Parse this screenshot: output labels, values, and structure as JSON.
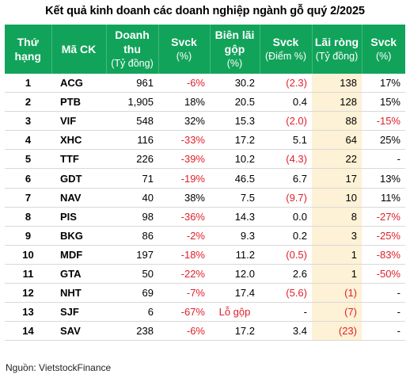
{
  "title": "Kết quả kinh doanh các doanh nghiệp ngành gỗ quý 2/2025",
  "headers": [
    {
      "main": "Thứ",
      "sub": "hạng",
      "sub_bold": true
    },
    {
      "main": "Mã CK",
      "sub": ""
    },
    {
      "main": "Doanh",
      "main2": "thu",
      "sub": "(Tỷ đồng)"
    },
    {
      "main": "Svck",
      "sub": "(%)"
    },
    {
      "main": "Biên lãi",
      "main2": "gộp",
      "sub": "(%)"
    },
    {
      "main": "Svck",
      "sub": "(Điểm %)"
    },
    {
      "main": "Lãi ròng",
      "sub": "(Tỷ đồng)"
    },
    {
      "main": "Svck",
      "sub": "(%)"
    }
  ],
  "rows": [
    {
      "rank": "1",
      "ticker": "ACG",
      "revenue": "961",
      "rev_yoy": "-6%",
      "gross_margin": "30.2",
      "margin_yoy": "(2.3)",
      "net_profit": "138",
      "profit_yoy": "17%"
    },
    {
      "rank": "2",
      "ticker": "PTB",
      "revenue": "1,905",
      "rev_yoy": "18%",
      "gross_margin": "20.5",
      "margin_yoy": "0.4",
      "net_profit": "128",
      "profit_yoy": "15%"
    },
    {
      "rank": "3",
      "ticker": "VIF",
      "revenue": "548",
      "rev_yoy": "32%",
      "gross_margin": "15.3",
      "margin_yoy": "(2.0)",
      "net_profit": "88",
      "profit_yoy": "-15%"
    },
    {
      "rank": "4",
      "ticker": "XHC",
      "revenue": "116",
      "rev_yoy": "-33%",
      "gross_margin": "17.2",
      "margin_yoy": "5.1",
      "net_profit": "64",
      "profit_yoy": "25%"
    },
    {
      "rank": "5",
      "ticker": "TTF",
      "revenue": "226",
      "rev_yoy": "-39%",
      "gross_margin": "10.2",
      "margin_yoy": "(4.3)",
      "net_profit": "22",
      "profit_yoy": "-"
    },
    {
      "rank": "6",
      "ticker": "GDT",
      "revenue": "71",
      "rev_yoy": "-19%",
      "gross_margin": "46.5",
      "margin_yoy": "6.7",
      "net_profit": "17",
      "profit_yoy": "13%"
    },
    {
      "rank": "7",
      "ticker": "NAV",
      "revenue": "40",
      "rev_yoy": "38%",
      "gross_margin": "7.5",
      "margin_yoy": "(9.7)",
      "net_profit": "10",
      "profit_yoy": "11%"
    },
    {
      "rank": "8",
      "ticker": "PIS",
      "revenue": "98",
      "rev_yoy": "-36%",
      "gross_margin": "14.3",
      "margin_yoy": "0.0",
      "net_profit": "8",
      "profit_yoy": "-27%"
    },
    {
      "rank": "9",
      "ticker": "BKG",
      "revenue": "86",
      "rev_yoy": "-2%",
      "gross_margin": "9.3",
      "margin_yoy": "0.2",
      "net_profit": "3",
      "profit_yoy": "-25%"
    },
    {
      "rank": "10",
      "ticker": "MDF",
      "revenue": "197",
      "rev_yoy": "-18%",
      "gross_margin": "11.2",
      "margin_yoy": "(0.5)",
      "net_profit": "1",
      "profit_yoy": "-83%"
    },
    {
      "rank": "11",
      "ticker": "GTA",
      "revenue": "50",
      "rev_yoy": "-22%",
      "gross_margin": "12.0",
      "margin_yoy": "2.6",
      "net_profit": "1",
      "profit_yoy": "-50%"
    },
    {
      "rank": "12",
      "ticker": "NHT",
      "revenue": "69",
      "rev_yoy": "-7%",
      "gross_margin": "17.4",
      "margin_yoy": "(5.6)",
      "net_profit": "(1)",
      "profit_yoy": "-"
    },
    {
      "rank": "13",
      "ticker": "SJF",
      "revenue": "6",
      "rev_yoy": "-67%",
      "gross_margin": "Lỗ gộp",
      "margin_yoy": "-",
      "net_profit": "(7)",
      "profit_yoy": "-"
    },
    {
      "rank": "14",
      "ticker": "SAV",
      "revenue": "238",
      "rev_yoy": "-6%",
      "gross_margin": "17.2",
      "margin_yoy": "3.4",
      "net_profit": "(23)",
      "profit_yoy": "-"
    }
  ],
  "source": "Nguồn: VietstockFinance",
  "colors": {
    "header_bg": "#12a35a",
    "header_text": "#ffffff",
    "negative": "#e0202a",
    "highlight_column": "#fdf1d6"
  }
}
